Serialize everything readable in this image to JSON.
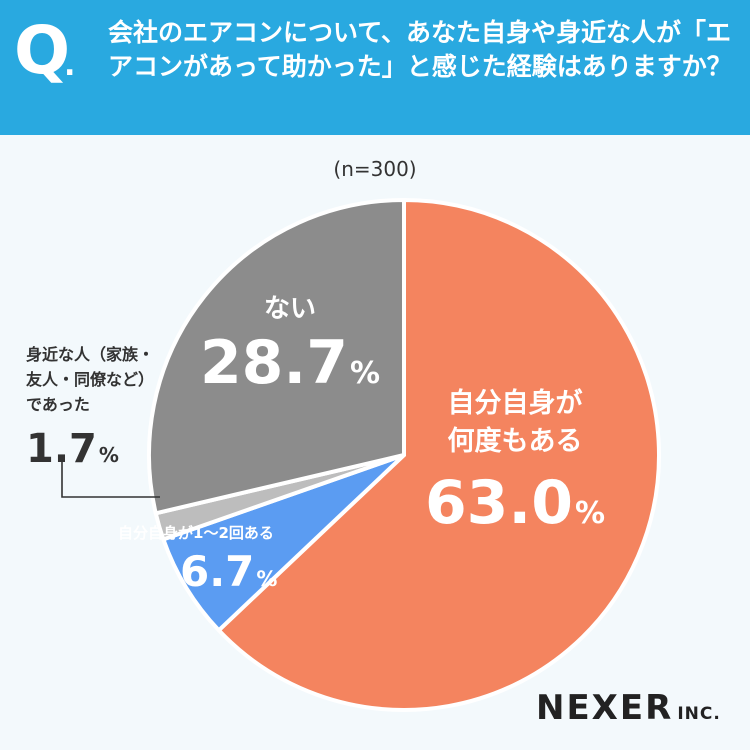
{
  "header": {
    "q_mark": "Q",
    "question": "会社のエアコンについて、あなた自身や身近な人が「エアコンがあって助かった」と感じた経験はありますか？"
  },
  "sample_size": "(n=300)",
  "chart_data": {
    "type": "pie",
    "start_angle_deg": 0,
    "direction": "clockwise",
    "slices": [
      {
        "label": "自分自身が何度もある",
        "value": 63.0,
        "display": "63.0",
        "color": "#f4845f"
      },
      {
        "label": "自分自身が1〜2回ある",
        "value": 6.7,
        "display": "6.7",
        "color": "#5b9cf2"
      },
      {
        "label": "身近な人（家族・友人・同僚など）であった",
        "value": 1.7,
        "display": "1.7",
        "color": "#bdbdbd"
      },
      {
        "label": "ない",
        "value": 28.7,
        "display": "28.7",
        "color": "#8c8c8c"
      }
    ],
    "unit": "%"
  },
  "labels": {
    "main_name_1": "自分自身が",
    "main_name_2": "何度もある",
    "none_name": "ない",
    "few_name": "自分自身が1〜2回ある",
    "family_name": "身近な人（家族・\n友人・同僚など）\nであった",
    "pct": "%"
  },
  "brand": {
    "name": "NEXER",
    "suffix": "INC."
  },
  "colors": {
    "header_bg": "#29a9e0",
    "background": "#f3f9fc",
    "leader_line": "#333333"
  }
}
